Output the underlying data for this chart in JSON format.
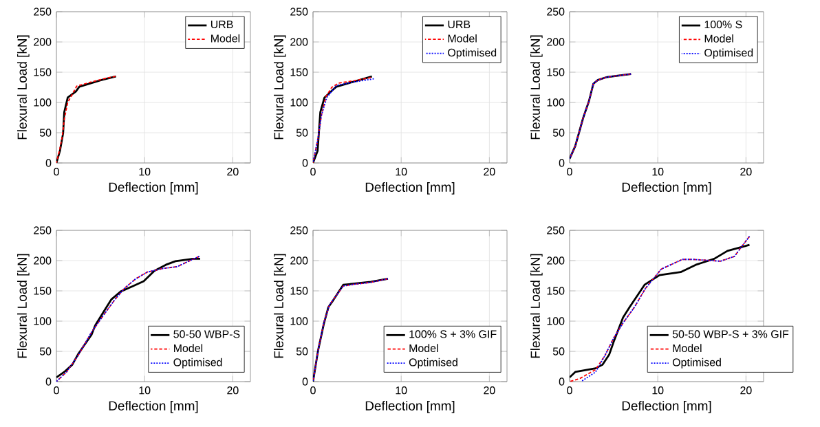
{
  "chart_data": [
    {
      "type": "line",
      "xlabel": "Deflection [mm]",
      "ylabel": "Flexural Load [kN]",
      "xlim": [
        0,
        22
      ],
      "ylim": [
        0,
        250
      ],
      "xticks": [
        0,
        10,
        20
      ],
      "yticks": [
        0,
        50,
        100,
        150,
        200,
        250
      ],
      "grid": true,
      "legend": "top right",
      "series": [
        {
          "name": "URB",
          "color": "#000000",
          "line_style": "solid",
          "x": [
            0,
            0.4,
            0.76,
            0.89,
            1.28,
            2.2,
            2.6,
            5.1,
            6.76
          ],
          "values": [
            0,
            20,
            49,
            84,
            108,
            118,
            126,
            137,
            143
          ]
        },
        {
          "name": "Model",
          "color": "#ff0000",
          "line_style": "dashed",
          "x": [
            0,
            0.37,
            0.68,
            0.89,
            1.28,
            1.67,
            2.3,
            3.76,
            5.6,
            6.7
          ],
          "values": [
            0,
            22,
            45,
            72,
            100,
            110,
            127,
            133,
            140,
            143
          ]
        }
      ]
    },
    {
      "type": "line",
      "xlabel": "Deflection [mm]",
      "ylabel": "Flexural Load [kN]",
      "xlim": [
        0,
        22
      ],
      "ylim": [
        0,
        250
      ],
      "xticks": [
        0,
        10,
        20
      ],
      "yticks": [
        0,
        50,
        100,
        150,
        200,
        250
      ],
      "grid": true,
      "legend": "top right",
      "series": [
        {
          "name": "URB",
          "color": "#000000",
          "line_style": "solid",
          "x": [
            0,
            0.52,
            0.83,
            1.3,
            2.26,
            2.65,
            5,
            6.68
          ],
          "values": [
            0,
            20,
            84,
            108,
            121,
            126,
            136,
            143
          ]
        },
        {
          "name": "Model",
          "color": "#ff0000",
          "line_style": "dashed",
          "x": [
            0,
            0.57,
            0.96,
            1.48,
            2.13,
            2.9,
            4.7,
            6.55
          ],
          "values": [
            0,
            41,
            79,
            110,
            125,
            132,
            136,
            141
          ]
        },
        {
          "name": "Optimised",
          "color": "#0000ff",
          "line_style": "dotted",
          "x": [
            0,
            0.57,
            0.96,
            1.56,
            2.65,
            4.7,
            6.9
          ],
          "values": [
            0,
            41,
            79,
            108,
            128,
            134,
            139
          ]
        }
      ]
    },
    {
      "type": "line",
      "xlabel": "Deflection [mm]",
      "ylabel": "Flexural Load [kN]",
      "xlim": [
        0,
        22
      ],
      "ylim": [
        0,
        250
      ],
      "xticks": [
        0,
        10,
        20
      ],
      "yticks": [
        0,
        50,
        100,
        150,
        200,
        250
      ],
      "grid": true,
      "legend": "top right",
      "series": [
        {
          "name": "100% S",
          "color": "#000000",
          "line_style": "solid",
          "x": [
            0,
            0.64,
            1.55,
            2.19,
            2.7,
            3.2,
            4.25,
            6.96
          ],
          "values": [
            7,
            28,
            75,
            102,
            131,
            137,
            142,
            147
          ]
        },
        {
          "name": "Model",
          "color": "#ff0000",
          "line_style": "dashed",
          "x": [
            0,
            0.64,
            1.55,
            2.19,
            2.7,
            3.2,
            4.25,
            6.96
          ],
          "values": [
            7,
            28,
            75,
            102,
            131,
            137,
            142,
            147
          ]
        },
        {
          "name": "Optimised",
          "color": "#0000ff",
          "line_style": "dotted",
          "x": [
            0,
            0.64,
            1.55,
            2.19,
            2.7,
            3.2,
            4.25,
            6.96
          ],
          "values": [
            7,
            28,
            75,
            102,
            131,
            137,
            142,
            147
          ]
        }
      ]
    },
    {
      "type": "line",
      "xlabel": "Deflection [mm]",
      "ylabel": "Flexural Load [kN]",
      "xlim": [
        0,
        22
      ],
      "ylim": [
        0,
        250
      ],
      "xticks": [
        0,
        10,
        20
      ],
      "yticks": [
        0,
        50,
        100,
        150,
        200,
        250
      ],
      "grid": true,
      "legend": "bottom right",
      "series": [
        {
          "name": "50-50 WBP-S",
          "color": "#000000",
          "line_style": "solid",
          "x": [
            0,
            0.89,
            1.8,
            2.45,
            3.24,
            4.0,
            4.4,
            5.46,
            6.24,
            7.3,
            8.7,
            9.9,
            11.1,
            12.4,
            13.5,
            15.5,
            16.3
          ],
          "values": [
            7,
            16,
            28,
            45,
            62,
            78,
            93,
            118,
            136,
            149,
            158,
            166,
            183,
            193,
            199,
            203,
            203
          ]
        },
        {
          "name": "Model",
          "color": "#ff0000",
          "line_style": "dashed",
          "x": [
            0,
            1.15,
            2.45,
            4.0,
            5.3,
            6.6,
            7.7,
            9,
            10.3,
            12.1,
            13.7,
            15,
            16.2
          ],
          "values": [
            0,
            16,
            43,
            82,
            109,
            135,
            154,
            170,
            181,
            187,
            190,
            199,
            207
          ]
        },
        {
          "name": "Optimised",
          "color": "#0000ff",
          "line_style": "dotted",
          "x": [
            0,
            1.15,
            2.45,
            4.0,
            5.3,
            6.6,
            7.7,
            9,
            10.3,
            12.1,
            13.7,
            15,
            16.2
          ],
          "values": [
            0,
            16,
            43,
            82,
            109,
            135,
            154,
            170,
            181,
            187,
            190,
            199,
            207
          ]
        }
      ]
    },
    {
      "type": "line",
      "xlabel": "Deflection [mm]",
      "ylabel": "Flexural Load [kN]",
      "xlim": [
        0,
        22
      ],
      "ylim": [
        0,
        250
      ],
      "xticks": [
        0,
        10,
        20
      ],
      "yticks": [
        0,
        50,
        100,
        150,
        200,
        250
      ],
      "grid": true,
      "legend": "bottom right",
      "series": [
        {
          "name": "100% S + 3% GIF",
          "color": "#000000",
          "line_style": "solid",
          "x": [
            0,
            0.57,
            1.22,
            1.74,
            2.13,
            3.43,
            4.73,
            6.55,
            8.5
          ],
          "values": [
            0,
            51,
            95,
            123,
            131,
            160,
            162,
            165,
            170
          ]
        },
        {
          "name": "Model",
          "color": "#ff0000",
          "line_style": "dashed",
          "x": [
            0,
            0.57,
            1.22,
            1.87,
            3.43,
            4.73,
            6.55,
            8.5
          ],
          "values": [
            0,
            51,
            97,
            127,
            158,
            161,
            164,
            170
          ]
        },
        {
          "name": "Optimised",
          "color": "#0000ff",
          "line_style": "dotted",
          "x": [
            0,
            0.57,
            1.22,
            1.87,
            3.43,
            4.73,
            6.55,
            8.5
          ],
          "values": [
            0,
            51,
            97,
            127,
            158,
            161,
            164,
            170
          ]
        }
      ]
    },
    {
      "type": "line",
      "xlabel": "Deflection [mm]",
      "ylabel": "Flexural Load [kN]",
      "xlim": [
        0,
        22
      ],
      "ylim": [
        0,
        250
      ],
      "xticks": [
        0,
        10,
        20
      ],
      "yticks": [
        0,
        50,
        100,
        150,
        200,
        250
      ],
      "grid": true,
      "legend": "bottom right",
      "series": [
        {
          "name": "50-50 WBP-S + 3% GIF",
          "color": "#000000",
          "line_style": "solid",
          "x": [
            0,
            0.64,
            2.96,
            3.74,
            4.5,
            5.0,
            6.06,
            6.8,
            7.86,
            8.5,
            10.2,
            12.6,
            14.3,
            16.4,
            17.9,
            20.4
          ],
          "values": [
            7,
            16,
            22,
            28,
            45,
            66,
            106,
            123,
            146,
            160,
            176,
            181,
            193,
            203,
            216,
            226
          ]
        },
        {
          "name": "Model",
          "color": "#ff0000",
          "line_style": "dashed",
          "x": [
            0,
            1.16,
            2.96,
            4.0,
            5.0,
            6.06,
            7.35,
            8.6,
            10.4,
            12.8,
            14.0,
            16.1,
            17.1,
            18.7,
            19.5,
            20.4
          ],
          "values": [
            0,
            5,
            20,
            43,
            72,
            97,
            123,
            154,
            186,
            202,
            202,
            200,
            199,
            207,
            223,
            240
          ]
        },
        {
          "name": "Optimised",
          "color": "#0000ff",
          "line_style": "dotted",
          "x": [
            1.29,
            2.96,
            4.0,
            5.0,
            6.06,
            7.35,
            8.6,
            10.4,
            12.8,
            14.0,
            16.1,
            17.1,
            18.7,
            19.5,
            20.4
          ],
          "values": [
            0,
            16,
            43,
            72,
            97,
            123,
            154,
            186,
            202,
            202,
            200,
            199,
            207,
            223,
            240
          ]
        }
      ]
    }
  ]
}
